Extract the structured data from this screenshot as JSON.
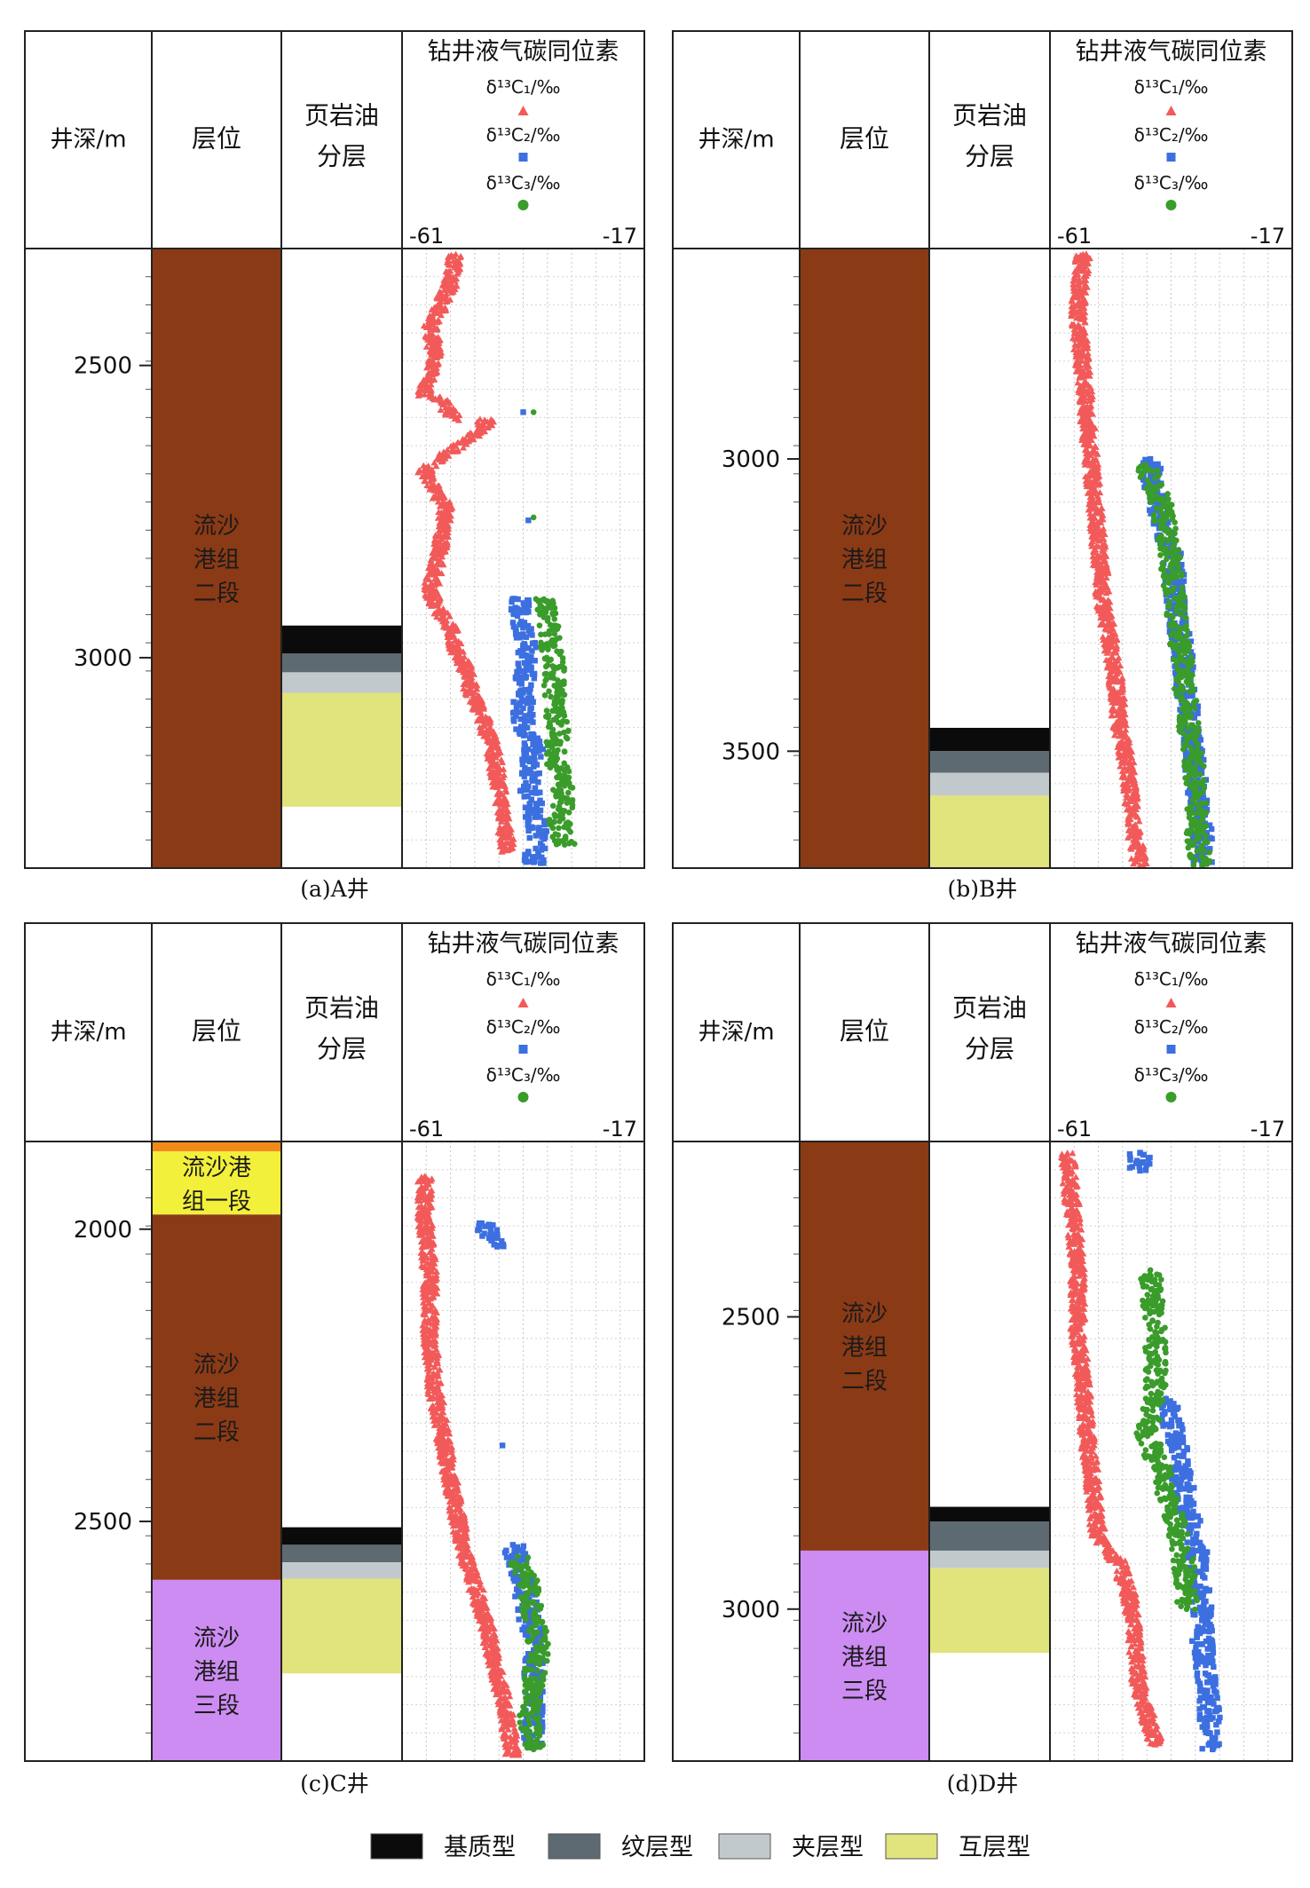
{
  "common": {
    "depth_header": "井深/m",
    "formation_header": "层位",
    "shale_header_1": "页岩油",
    "shale_header_2": "分层",
    "isotope_header": "钻井液气碳同位素",
    "c1_label": "δ¹³C₁/‰",
    "c2_label": "δ¹³C₂/‰",
    "c3_label": "δ¹³C₃/‰",
    "xmin_label": "-61",
    "xmax_label": "-17"
  },
  "legend": [
    {
      "label": "基质型",
      "color": "#0b0b0b"
    },
    {
      "label": "纹层型",
      "color": "#5e6a72"
    },
    {
      "label": "夹层型",
      "color": "#c2c9cc"
    },
    {
      "label": "互层型",
      "color": "#e1e37d"
    }
  ],
  "colors": {
    "c1": "#f25a5a",
    "c2": "#3c6fe0",
    "c3": "#3a9c2a"
  },
  "chart_data": [
    {
      "type": "scatter",
      "caption": "(a)A井",
      "xlim": [
        -61,
        -17
      ],
      "depth_range": [
        2300,
        3360
      ],
      "depth_ticks": [
        2500,
        3000
      ],
      "formations": [
        {
          "name": "流沙港组二段",
          "lines": [
            "流沙",
            "港组",
            "二段"
          ],
          "top": 2300,
          "bottom": 3360,
          "color": "#8b3a16"
        }
      ],
      "shale_layers": [
        {
          "type": "基质型",
          "top": 2945,
          "bottom": 2993
        },
        {
          "type": "纹层型",
          "top": 2993,
          "bottom": 3025
        },
        {
          "type": "夹层型",
          "top": 3025,
          "bottom": 3060
        },
        {
          "type": "互层型",
          "top": 3060,
          "bottom": 3255
        }
      ],
      "c1": [
        [
          -52,
          2310
        ],
        [
          -53,
          2360
        ],
        [
          -55,
          2400
        ],
        [
          -57,
          2430
        ],
        [
          -56,
          2480
        ],
        [
          -58,
          2550
        ],
        [
          -55,
          2560
        ],
        [
          -52,
          2590
        ],
        [
          -45,
          2595
        ],
        [
          -58,
          2680
        ],
        [
          -54,
          2740
        ],
        [
          -55,
          2810
        ],
        [
          -56,
          2850
        ],
        [
          -57,
          2890
        ],
        [
          -55,
          2920
        ],
        [
          -53,
          2950
        ],
        [
          -52,
          2980
        ],
        [
          -50,
          3020
        ],
        [
          -49,
          3060
        ],
        [
          -47,
          3100
        ],
        [
          -45,
          3150
        ],
        [
          -44,
          3200
        ],
        [
          -43,
          3260
        ],
        [
          -42,
          3330
        ]
      ],
      "c2": [
        [
          -39,
          2580
        ],
        [
          -38,
          2765
        ],
        [
          -40,
          2900
        ],
        [
          -39,
          2960
        ],
        [
          -38,
          3010
        ],
        [
          -39,
          3060
        ],
        [
          -39,
          3120
        ],
        [
          -37,
          3160
        ],
        [
          -38,
          3220
        ],
        [
          -37,
          3260
        ],
        [
          -36,
          3300
        ],
        [
          -37,
          3350
        ]
      ],
      "c3": [
        [
          -37,
          2580
        ],
        [
          -37,
          2760
        ],
        [
          -35,
          2900
        ],
        [
          -34,
          2960
        ],
        [
          -33,
          3020
        ],
        [
          -33,
          3080
        ],
        [
          -32,
          3130
        ],
        [
          -33,
          3160
        ],
        [
          -32,
          3200
        ],
        [
          -31,
          3240
        ],
        [
          -32,
          3280
        ],
        [
          -31,
          3320
        ]
      ]
    },
    {
      "type": "scatter",
      "caption": "(b)B井",
      "xlim": [
        -61,
        -17
      ],
      "depth_range": [
        2640,
        3700
      ],
      "depth_ticks": [
        3000,
        3500
      ],
      "formations": [
        {
          "name": "流沙港组二段",
          "lines": [
            "流沙",
            "港组",
            "二段"
          ],
          "top": 2640,
          "bottom": 3700,
          "color": "#8b3a16"
        }
      ],
      "shale_layers": [
        {
          "type": "基质型",
          "top": 3460,
          "bottom": 3500
        },
        {
          "type": "纹层型",
          "top": 3500,
          "bottom": 3537
        },
        {
          "type": "夹层型",
          "top": 3537,
          "bottom": 3576
        },
        {
          "type": "互层型",
          "top": 3576,
          "bottom": 3700
        }
      ],
      "c1": [
        [
          -56,
          2650
        ],
        [
          -57,
          2750
        ],
        [
          -56,
          2850
        ],
        [
          -55,
          2950
        ],
        [
          -54,
          3050
        ],
        [
          -53,
          3150
        ],
        [
          -52,
          3250
        ],
        [
          -50,
          3350
        ],
        [
          -49,
          3450
        ],
        [
          -47,
          3550
        ],
        [
          -46,
          3650
        ],
        [
          -45,
          3695
        ]
      ],
      "c2": [
        [
          -43,
          3000
        ],
        [
          -42,
          3060
        ],
        [
          -41,
          3100
        ],
        [
          -39,
          3160
        ],
        [
          -38,
          3240
        ],
        [
          -37,
          3320
        ],
        [
          -36,
          3400
        ],
        [
          -35,
          3480
        ],
        [
          -34,
          3560
        ],
        [
          -33,
          3640
        ],
        [
          -33,
          3695
        ]
      ],
      "c3": [
        [
          -44,
          3010
        ],
        [
          -41,
          3070
        ],
        [
          -40,
          3120
        ],
        [
          -39,
          3180
        ],
        [
          -38,
          3260
        ],
        [
          -37,
          3340
        ],
        [
          -36,
          3420
        ],
        [
          -35,
          3500
        ],
        [
          -34,
          3580
        ],
        [
          -34,
          3650
        ],
        [
          -33,
          3695
        ]
      ]
    },
    {
      "type": "scatter",
      "caption": "(c)C井",
      "xlim": [
        -61,
        -17
      ],
      "depth_range": [
        1850,
        2910
      ],
      "depth_ticks": [
        2000,
        2500
      ],
      "formations": [
        {
          "name": "",
          "lines": [],
          "top": 1850,
          "bottom": 1867,
          "color": "#f28a1a"
        },
        {
          "name": "流沙港组一段",
          "lines": [
            "流沙港",
            "组一段"
          ],
          "top": 1867,
          "bottom": 1975,
          "color": "#f2f03a"
        },
        {
          "name": "流沙港组二段",
          "lines": [
            "流沙",
            "港组",
            "二段"
          ],
          "top": 1975,
          "bottom": 2600,
          "color": "#8b3a16"
        },
        {
          "name": "流沙港组三段",
          "lines": [
            "流沙",
            "港组",
            "三段"
          ],
          "top": 2600,
          "bottom": 2910,
          "color": "#cc8cf2"
        }
      ],
      "shale_layers": [
        {
          "type": "基质型",
          "top": 2510,
          "bottom": 2540
        },
        {
          "type": "纹层型",
          "top": 2540,
          "bottom": 2570
        },
        {
          "type": "夹层型",
          "top": 2570,
          "bottom": 2598
        },
        {
          "type": "互层型",
          "top": 2598,
          "bottom": 2760
        }
      ],
      "c1": [
        [
          -58,
          1910
        ],
        [
          -58,
          1980
        ],
        [
          -57,
          2080
        ],
        [
          -57,
          2180
        ],
        [
          -56,
          2280
        ],
        [
          -54,
          2380
        ],
        [
          -52,
          2480
        ],
        [
          -50,
          2560
        ],
        [
          -48,
          2620
        ],
        [
          -46,
          2680
        ],
        [
          -44,
          2760
        ],
        [
          -42,
          2840
        ],
        [
          -41,
          2900
        ]
      ],
      "c2": [
        [
          -47,
          1990
        ],
        [
          -45,
          2010
        ],
        [
          -44,
          2030
        ],
        [
          -43,
          2370
        ],
        [
          -41,
          2540
        ],
        [
          -39,
          2600
        ],
        [
          -38,
          2660
        ],
        [
          -37,
          2720
        ],
        [
          -37,
          2800
        ],
        [
          -37,
          2880
        ]
      ],
      "c3": [
        [
          -40,
          2560
        ],
        [
          -38,
          2610
        ],
        [
          -37,
          2660
        ],
        [
          -36,
          2720
        ],
        [
          -37,
          2780
        ],
        [
          -38,
          2840
        ],
        [
          -37,
          2890
        ]
      ]
    },
    {
      "type": "scatter",
      "caption": "(d)D井",
      "xlim": [
        -61,
        -17
      ],
      "depth_range": [
        2200,
        3260
      ],
      "depth_ticks": [
        2500,
        3000
      ],
      "formations": [
        {
          "name": "流沙港组二段",
          "lines": [
            "流沙",
            "港组",
            "二段"
          ],
          "top": 2200,
          "bottom": 2900,
          "color": "#8b3a16"
        },
        {
          "name": "流沙港组三段",
          "lines": [
            "流沙",
            "港组",
            "三段"
          ],
          "top": 2900,
          "bottom": 3260,
          "color": "#cc8cf2"
        }
      ],
      "shale_layers": [
        {
          "type": "基质型",
          "top": 2825,
          "bottom": 2850
        },
        {
          "type": "纹层型",
          "top": 2850,
          "bottom": 2900
        },
        {
          "type": "夹层型",
          "top": 2900,
          "bottom": 2930
        },
        {
          "type": "互层型",
          "top": 2930,
          "bottom": 3075
        }
      ],
      "c1": [
        [
          -59,
          2220
        ],
        [
          -58,
          2320
        ],
        [
          -57,
          2420
        ],
        [
          -57,
          2520
        ],
        [
          -56,
          2620
        ],
        [
          -55,
          2720
        ],
        [
          -54,
          2800
        ],
        [
          -53,
          2880
        ],
        [
          -49,
          2920
        ],
        [
          -47,
          2980
        ],
        [
          -46,
          3060
        ],
        [
          -45,
          3140
        ],
        [
          -42,
          3230
        ]
      ],
      "c2": [
        [
          -45,
          2220
        ],
        [
          -45,
          2250
        ],
        [
          -40,
          2640
        ],
        [
          -38,
          2720
        ],
        [
          -36,
          2820
        ],
        [
          -34,
          2900
        ],
        [
          -33,
          2980
        ],
        [
          -33,
          3060
        ],
        [
          -32,
          3140
        ],
        [
          -31,
          3240
        ]
      ],
      "c3": [
        [
          -43,
          2420
        ],
        [
          -42,
          2540
        ],
        [
          -42,
          2640
        ],
        [
          -44,
          2700
        ],
        [
          -41,
          2760
        ],
        [
          -39,
          2820
        ],
        [
          -37,
          2890
        ],
        [
          -36,
          2960
        ],
        [
          -36,
          3000
        ]
      ]
    }
  ]
}
